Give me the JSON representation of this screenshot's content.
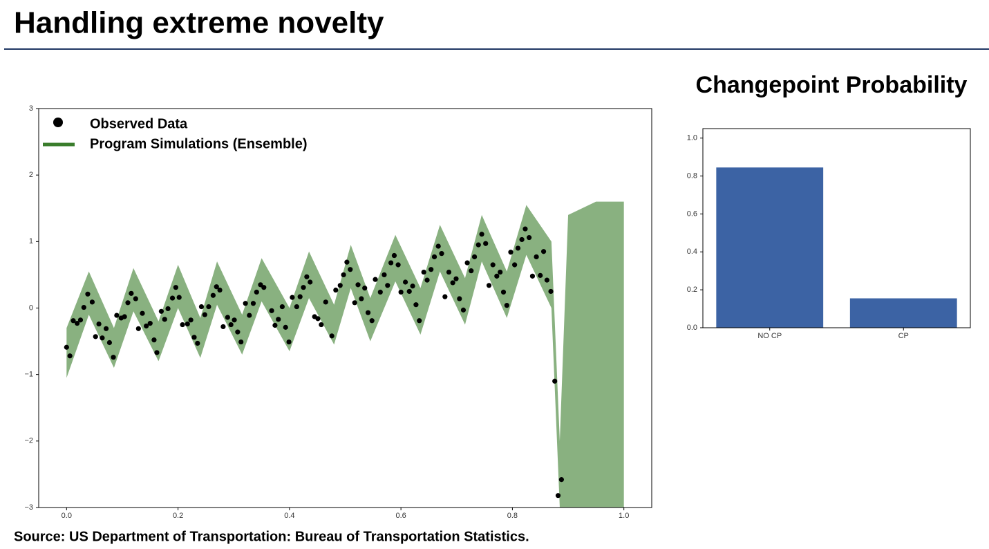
{
  "header": {
    "title": "Handling extreme novelty"
  },
  "footer": {
    "source": "Source: US Department of Transportation: Bureau of Transportation Statistics."
  },
  "chart_data": [
    {
      "type": "scatter",
      "xlim": [
        -0.05,
        1.05
      ],
      "ylim": [
        -3,
        3
      ],
      "xticks": [
        {
          "value": 0,
          "label": "0.0"
        },
        {
          "value": 0.2,
          "label": "0.2"
        },
        {
          "value": 0.4,
          "label": "0.4"
        },
        {
          "value": 0.6,
          "label": "0.6"
        },
        {
          "value": 0.8,
          "label": "0.8"
        },
        {
          "value": 1,
          "label": "1.0"
        }
      ],
      "yticks": [
        {
          "value": -3,
          "label": "−3"
        },
        {
          "value": -2,
          "label": "−2"
        },
        {
          "value": -1,
          "label": "−1"
        },
        0,
        1,
        2,
        3
      ],
      "series": [
        {
          "name": "Observed Data",
          "color": "#000000",
          "x": [
            0,
            0.006,
            0.012,
            0.019,
            0.025,
            0.031,
            0.038,
            0.046,
            0.052,
            0.058,
            0.064,
            0.071,
            0.077,
            0.084,
            0.09,
            0.098,
            0.104,
            0.11,
            0.116,
            0.124,
            0.129,
            0.136,
            0.143,
            0.15,
            0.157,
            0.162,
            0.17,
            0.176,
            0.182,
            0.19,
            0.196,
            0.202,
            0.208,
            0.217,
            0.223,
            0.229,
            0.235,
            0.242,
            0.248,
            0.255,
            0.263,
            0.269,
            0.275,
            0.281,
            0.289,
            0.295,
            0.301,
            0.307,
            0.313,
            0.321,
            0.328,
            0.335,
            0.341,
            0.348,
            0.354,
            0.368,
            0.374,
            0.38,
            0.387,
            0.393,
            0.399,
            0.405,
            0.413,
            0.419,
            0.425,
            0.431,
            0.437,
            0.445,
            0.451,
            0.457,
            0.465,
            0.476,
            0.483,
            0.491,
            0.497,
            0.503,
            0.509,
            0.517,
            0.523,
            0.529,
            0.535,
            0.541,
            0.548,
            0.554,
            0.563,
            0.57,
            0.576,
            0.582,
            0.588,
            0.595,
            0.6,
            0.608,
            0.615,
            0.621,
            0.627,
            0.633,
            0.641,
            0.647,
            0.654,
            0.66,
            0.667,
            0.673,
            0.679,
            0.686,
            0.693,
            0.699,
            0.705,
            0.712,
            0.719,
            0.726,
            0.732,
            0.739,
            0.745,
            0.752,
            0.758,
            0.765,
            0.772,
            0.778,
            0.784,
            0.79,
            0.797,
            0.804,
            0.81,
            0.817,
            0.823,
            0.83,
            0.836,
            0.843,
            0.85,
            0.856,
            0.862,
            0.869,
            0.876,
            0.882,
            0.888
          ],
          "values": [
            -0.59,
            -0.72,
            -0.19,
            -0.23,
            -0.18,
            0.01,
            0.21,
            0.09,
            -0.43,
            -0.24,
            -0.45,
            -0.31,
            -0.52,
            -0.74,
            -0.11,
            -0.15,
            -0.13,
            0.08,
            0.22,
            0.14,
            -0.31,
            -0.08,
            -0.27,
            -0.23,
            -0.48,
            -0.67,
            -0.05,
            -0.17,
            -0.01,
            0.15,
            0.31,
            0.16,
            -0.25,
            -0.24,
            -0.18,
            -0.44,
            -0.53,
            0.02,
            -0.1,
            0.02,
            0.19,
            0.32,
            0.27,
            -0.28,
            -0.14,
            -0.25,
            -0.18,
            -0.36,
            -0.51,
            0.07,
            -0.11,
            0.07,
            0.24,
            0.35,
            0.31,
            -0.04,
            -0.26,
            -0.17,
            0.02,
            -0.29,
            -0.51,
            0.16,
            0.02,
            0.17,
            0.31,
            0.47,
            0.39,
            -0.13,
            -0.16,
            -0.25,
            0.09,
            -0.42,
            0.27,
            0.34,
            0.5,
            0.69,
            0.58,
            0.08,
            0.35,
            0.14,
            0.3,
            -0.07,
            -0.19,
            0.43,
            0.24,
            0.5,
            0.34,
            0.68,
            0.79,
            0.65,
            0.24,
            0.39,
            0.25,
            0.33,
            0.05,
            -0.19,
            0.54,
            0.42,
            0.58,
            0.77,
            0.93,
            0.82,
            0.17,
            0.54,
            0.38,
            0.44,
            0.14,
            -0.03,
            0.68,
            0.56,
            0.77,
            0.95,
            1.11,
            0.97,
            0.34,
            0.65,
            0.48,
            0.54,
            0.24,
            0.04,
            0.84,
            0.65,
            0.9,
            1.03,
            1.19,
            1.06,
            0.48,
            0.77,
            0.49,
            0.85,
            0.42,
            0.25,
            -1.1,
            -2.82,
            -2.58
          ]
        },
        {
          "name": "Program Simulations (Ensemble)",
          "color": "#3a7d2c",
          "x": [
            0,
            0.04,
            0.085,
            0.12,
            0.165,
            0.2,
            0.24,
            0.27,
            0.315,
            0.35,
            0.4,
            0.435,
            0.48,
            0.51,
            0.545,
            0.59,
            0.635,
            0.67,
            0.715,
            0.745,
            0.79,
            0.825,
            0.87,
            0.885,
            0.9,
            0.95,
            1
          ],
          "lower": [
            -1.05,
            -0.1,
            -0.9,
            -0.05,
            -0.8,
            0,
            -0.75,
            0.05,
            -0.7,
            0.1,
            -0.65,
            0.15,
            -0.55,
            0.3,
            -0.5,
            0.4,
            -0.4,
            0.55,
            -0.25,
            0.7,
            -0.15,
            0.8,
            0,
            -3,
            -3,
            -3,
            -3
          ],
          "upper": [
            -0.3,
            0.55,
            -0.3,
            0.6,
            -0.2,
            0.65,
            -0.15,
            0.7,
            -0.1,
            0.75,
            0,
            0.85,
            0.05,
            0.95,
            0.15,
            1.1,
            0.3,
            1.25,
            0.45,
            1.4,
            0.55,
            1.55,
            1,
            -2,
            1.4,
            1.6,
            1.6
          ]
        }
      ]
    },
    {
      "type": "bar",
      "title": "Changepoint Probability",
      "categories": [
        "NO CP",
        "CP"
      ],
      "values": [
        0.845,
        0.155
      ],
      "color": "#3c63a4",
      "ylim": [
        0,
        1.05
      ],
      "yticks": [
        {
          "value": 0,
          "label": "0.0"
        },
        {
          "value": 0.2,
          "label": "0.2"
        },
        {
          "value": 0.4,
          "label": "0.4"
        },
        {
          "value": 0.6,
          "label": "0.6"
        },
        {
          "value": 0.8,
          "label": "0.8"
        },
        {
          "value": 1,
          "label": "1.0"
        }
      ]
    }
  ]
}
